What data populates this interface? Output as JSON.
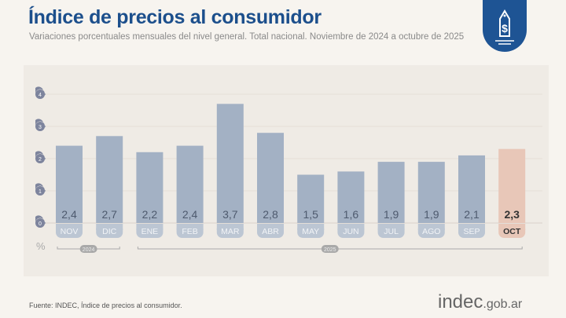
{
  "header": {
    "title": "Índice de precios al consumidor",
    "subtitle": "Variaciones porcentuales mensuales del nivel general. Total nacional. Noviembre de 2024 a octubre de 2025",
    "icon": "price-tag-dollar-icon"
  },
  "chart_data": {
    "type": "bar",
    "title": "Índice de precios al consumidor",
    "ylabel": "%",
    "ylim": [
      0,
      4
    ],
    "yticks": [
      "0",
      "1",
      "2",
      "3",
      "4"
    ],
    "grid": true,
    "categories": [
      "NOV",
      "DIC",
      "ENE",
      "FEB",
      "MAR",
      "ABR",
      "MAY",
      "JUN",
      "JUL",
      "AGO",
      "SEP",
      "OCT"
    ],
    "values": [
      2.4,
      2.7,
      2.2,
      2.4,
      3.7,
      2.8,
      1.5,
      1.6,
      1.9,
      1.9,
      2.1,
      2.3
    ],
    "value_labels": [
      "2,4",
      "2,7",
      "2,2",
      "2,4",
      "3,7",
      "2,8",
      "1,5",
      "1,6",
      "1,9",
      "1,9",
      "2,1",
      "2,3"
    ],
    "year_groups": [
      {
        "label": "2024",
        "from": "NOV",
        "to": "DIC"
      },
      {
        "label": "2025",
        "from": "ENE",
        "to": "OCT"
      }
    ],
    "colors": {
      "bar": "#a3b1c4",
      "highlight": "#e8c7b8",
      "tick_badge": "#7d849d"
    },
    "highlight": "OCT"
  },
  "footer": {
    "source": "Fuente: INDEC, Índice de precios al consumidor.",
    "logo_main": "indec",
    "logo_suffix": ".gob.ar"
  }
}
